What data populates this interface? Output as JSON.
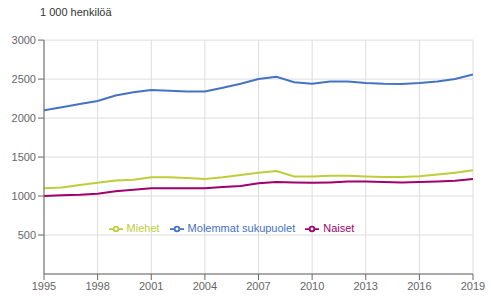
{
  "chart_data": {
    "type": "line",
    "ylabel": "1 000 henkilöä",
    "x": [
      1995,
      1996,
      1997,
      1998,
      1999,
      2000,
      2001,
      2002,
      2003,
      2004,
      2005,
      2006,
      2007,
      2008,
      2009,
      2010,
      2011,
      2012,
      2013,
      2014,
      2015,
      2016,
      2017,
      2018,
      2019
    ],
    "series": [
      {
        "name": "Molemmat sukupuolet",
        "color": "#4472C4",
        "values": [
          2100,
          2140,
          2180,
          2220,
          2290,
          2330,
          2360,
          2350,
          2340,
          2340,
          2390,
          2440,
          2500,
          2530,
          2460,
          2440,
          2470,
          2470,
          2450,
          2440,
          2437,
          2450,
          2470,
          2500,
          2560
        ]
      },
      {
        "name": "Miehet",
        "color": "#BFCD3A",
        "values": [
          1100,
          1110,
          1140,
          1170,
          1200,
          1210,
          1240,
          1240,
          1230,
          1220,
          1240,
          1270,
          1300,
          1320,
          1250,
          1250,
          1260,
          1260,
          1250,
          1245,
          1245,
          1255,
          1275,
          1300,
          1330
        ]
      },
      {
        "name": "Naiset",
        "color": "#A0006E",
        "values": [
          1000,
          1010,
          1015,
          1030,
          1060,
          1080,
          1100,
          1100,
          1100,
          1100,
          1115,
          1130,
          1165,
          1180,
          1175,
          1170,
          1175,
          1185,
          1185,
          1180,
          1175,
          1180,
          1185,
          1195,
          1220
        ]
      }
    ],
    "xlim": [
      1995,
      2019
    ],
    "xticks": [
      1995,
      1998,
      2001,
      2004,
      2007,
      2010,
      2013,
      2016,
      2019
    ],
    "ylim": [
      0,
      3000
    ],
    "yticks": [
      500,
      1000,
      1500,
      2000,
      2500,
      3000
    ],
    "grid": true,
    "legend": "lower center"
  }
}
